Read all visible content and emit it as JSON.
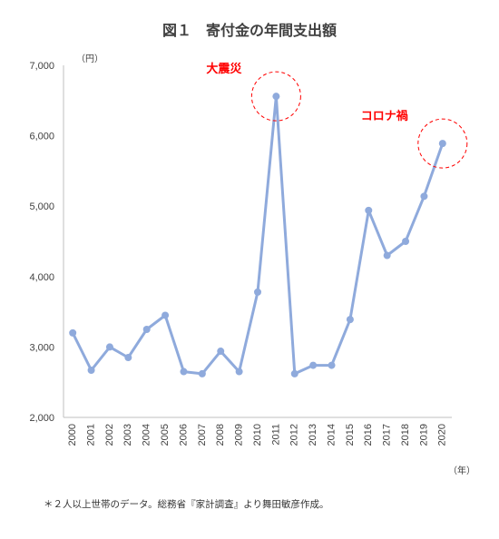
{
  "chart_data": {
    "type": "line",
    "title": "図１　寄付金の年間支出額",
    "ylabel": "（円）",
    "xlabel": "（年）",
    "ylim": [
      2000,
      7000
    ],
    "yticks": [
      2000,
      3000,
      4000,
      5000,
      6000,
      7000
    ],
    "ytick_labels": [
      "2,000",
      "3,000",
      "4,000",
      "5,000",
      "6,000",
      "7,000"
    ],
    "categories": [
      "2000",
      "2001",
      "2002",
      "2003",
      "2004",
      "2005",
      "2006",
      "2007",
      "2008",
      "2009",
      "2010",
      "2011",
      "2012",
      "2013",
      "2014",
      "2015",
      "2016",
      "2017",
      "2018",
      "2019",
      "2020"
    ],
    "series": [
      {
        "values": [
          3200,
          2670,
          3000,
          2850,
          3250,
          3450,
          2650,
          2620,
          2940,
          2650,
          3780,
          6560,
          2620,
          2740,
          2740,
          3390,
          4940,
          4300,
          4500,
          5140,
          5890
        ]
      }
    ],
    "grid": false,
    "line_color": "#8FAADC",
    "annotations": [
      {
        "text": "大震災",
        "category": "2011",
        "color": "#FF0000"
      },
      {
        "text": "コロナ禍",
        "category": "2020",
        "color": "#FF0000"
      }
    ]
  },
  "footnote": "＊２人以上世帯のデータ。総務省『家計調査』より舞田敏彦作成。"
}
